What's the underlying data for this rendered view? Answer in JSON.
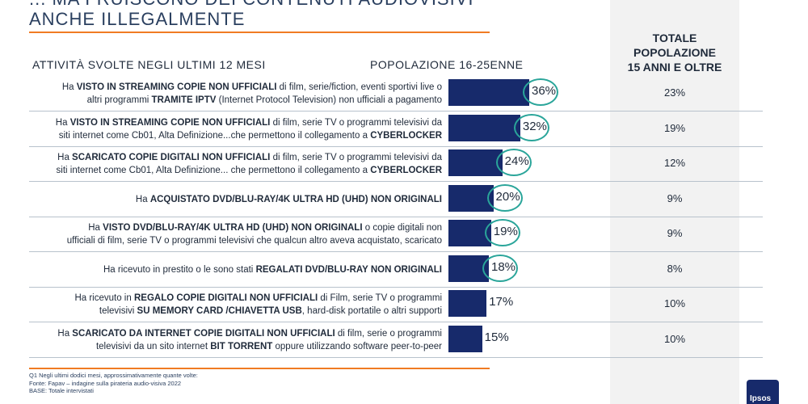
{
  "title": {
    "line1": "... MA FRUISCONO DEI CONTENUTI AUDIOVISIVI",
    "line2": "ANCHE ILLEGALMENTE"
  },
  "headers": {
    "activities": "ATTIVITÀ SVOLTE NEGLI ULTIMI 12 MESI",
    "population": "POPOLAZIONE 16-25ENNE",
    "total_line1": "TOTALE",
    "total_line2": "POPOLAZIONE",
    "total_line3": "15 ANNI E OLTRE"
  },
  "chart_data": {
    "type": "bar",
    "orientation": "horizontal",
    "categories": [
      "Ha VISTO IN STREAMING COPIE NON UFFICIALI di film, serie/fiction, eventi sportivi live o altri programmi TRAMITE IPTV (Internet Protocol Television) non ufficiali a pagamento",
      "Ha VISTO IN STREAMING COPIE NON UFFICIALI di film, serie TV o programmi televisivi da siti internet come Cb01, Alta Definizione...che permettono il collegamento a CYBERLOCKER",
      "Ha SCARICATO COPIE DIGITALI NON UFFICIALI di film, serie TV o programmi televisivi da siti internet come Cb01, Alta Definizione... che permettono il collegamento a CYBERLOCKER",
      "Ha ACQUISTATO DVD/BLU-RAY/4K ULTRA HD (UHD) NON ORIGINALI",
      "Ha VISTO DVD/BLU-RAY/4K ULTRA HD (UHD) NON ORIGINALI o copie digitali non ufficiali di film, serie TV o programmi televisivi che qualcun altro aveva acquistato, scaricato",
      "Ha ricevuto in prestito o le sono stati REGALATI DVD/BLU-RAY NON ORIGINALI",
      "Ha ricevuto in REGALO COPIE DIGITALI NON UFFICIALI di Film, serie TV o programmi televisivi SU MEMORY CARD /CHIAVETTA USB, hard-disk portatile o altri supporti",
      "Ha SCARICATO DA INTERNET COPIE DIGITALI NON UFFICIALI di film, serie o programmi televisivi da un sito internet BIT TORRENT oppure utilizzando software peer-to-peer"
    ],
    "series": [
      {
        "name": "POPOLAZIONE 16-25ENNE",
        "values": [
          36,
          32,
          24,
          20,
          19,
          18,
          17,
          15
        ],
        "labels": [
          "36%",
          "32%",
          "24%",
          "20%",
          "19%",
          "18%",
          "17%",
          "15%"
        ]
      },
      {
        "name": "TOTALE POPOLAZIONE 15 ANNI E OLTRE",
        "values": [
          23,
          19,
          12,
          9,
          9,
          8,
          10,
          10
        ],
        "labels": [
          "23%",
          "19%",
          "12%",
          "9%",
          "9%",
          "8%",
          "10%",
          "10%"
        ]
      }
    ],
    "highlighted": [
      true,
      true,
      true,
      true,
      true,
      true,
      false,
      false
    ],
    "colors": {
      "bar": "#172a6b",
      "circle": "#2aa59a",
      "accent": "#f07b23"
    },
    "xlim": [
      0,
      40
    ]
  },
  "rows": [
    {
      "parts": [
        [
          "Ha ",
          false
        ],
        [
          "VISTO IN STREAMING COPIE NON UFFICIALI",
          true
        ],
        [
          " di film, serie/fiction, eventi sportivi live o",
          false
        ],
        [
          "\n",
          false
        ],
        [
          "altri programmi ",
          false
        ],
        [
          "TRAMITE IPTV",
          true
        ],
        [
          " (Internet Protocol Television) non ufficiali a pagamento",
          false
        ]
      ]
    },
    {
      "parts": [
        [
          "Ha ",
          false
        ],
        [
          "VISTO IN STREAMING COPIE NON UFFICIALI",
          true
        ],
        [
          " di film, serie TV o programmi televisivi da",
          false
        ],
        [
          "\n",
          false
        ],
        [
          "siti internet come Cb01, Alta Definizione...che permettono il collegamento a ",
          false
        ],
        [
          "CYBERLOCKER",
          true
        ]
      ]
    },
    {
      "parts": [
        [
          "Ha ",
          false
        ],
        [
          "SCARICATO COPIE DIGITALI NON UFFICIALI",
          true
        ],
        [
          " di film, serie TV o programmi televisivi da",
          false
        ],
        [
          "\n",
          false
        ],
        [
          "siti internet come Cb01, Alta Definizione... che permettono il collegamento a ",
          false
        ],
        [
          "CYBERLOCKER",
          true
        ]
      ]
    },
    {
      "parts": [
        [
          "Ha ",
          false
        ],
        [
          "ACQUISTATO DVD/BLU-RAY/4K ULTRA HD (UHD) NON ORIGINALI",
          true
        ]
      ]
    },
    {
      "parts": [
        [
          "Ha ",
          false
        ],
        [
          "VISTO DVD/BLU-RAY/4K ULTRA HD (UHD) NON ORIGINALI",
          true
        ],
        [
          " o copie digitali non",
          false
        ],
        [
          "\n",
          false
        ],
        [
          "ufficiali di film, serie TV o programmi televisivi che qualcun altro aveva acquistato, scaricato",
          false
        ]
      ]
    },
    {
      "parts": [
        [
          "Ha ricevuto in prestito o le sono stati ",
          false
        ],
        [
          "REGALATI DVD/BLU-RAY NON ORIGINALI",
          true
        ]
      ]
    },
    {
      "parts": [
        [
          "Ha ricevuto in ",
          false
        ],
        [
          "REGALO COPIE DIGITALI NON UFFICIALI",
          true
        ],
        [
          " di Film, serie TV o programmi",
          false
        ],
        [
          "\n",
          false
        ],
        [
          "televisivi ",
          false
        ],
        [
          "SU MEMORY CARD /CHIAVETTA USB",
          true
        ],
        [
          ", hard-disk portatile o altri supporti",
          false
        ]
      ]
    },
    {
      "parts": [
        [
          "Ha ",
          false
        ],
        [
          "SCARICATO DA INTERNET COPIE DIGITALI NON UFFICIALI",
          true
        ],
        [
          " di film, serie o programmi",
          false
        ],
        [
          "\n",
          false
        ],
        [
          "televisivi da un sito internet ",
          false
        ],
        [
          "BIT TORRENT",
          true
        ],
        [
          " oppure utilizzando software peer-to-peer",
          false
        ]
      ]
    }
  ],
  "notes": {
    "line1": "Q1 Negli ultimi dodici mesi, approssimativamente quante volte:",
    "line2": "Fonte: Fapav – indagine sulla pirateria audio-visiva 2022",
    "line3": "BASE: Totale intervistati"
  },
  "logo": {
    "text": "Ipsos"
  }
}
